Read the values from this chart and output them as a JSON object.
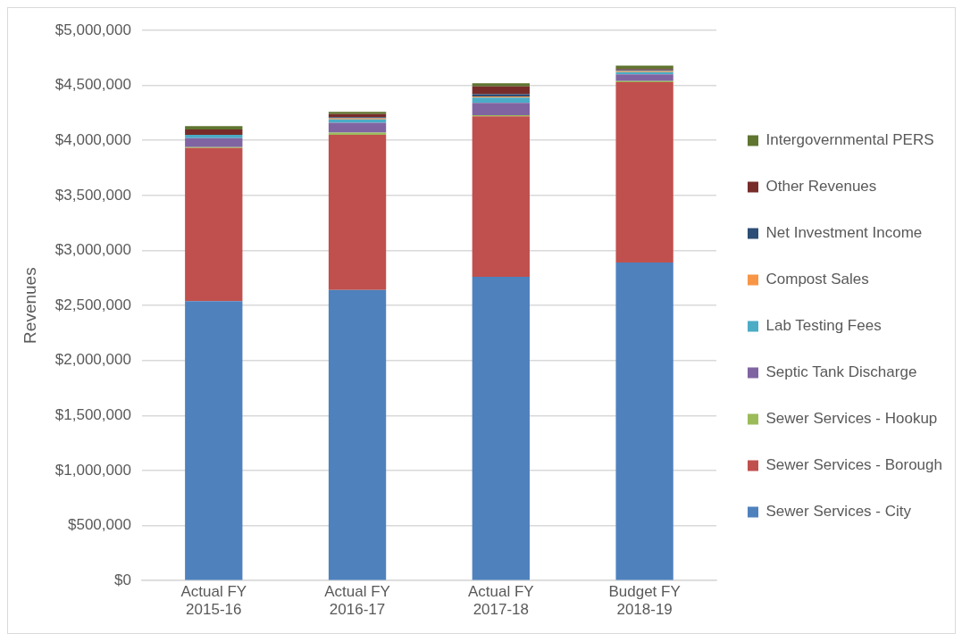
{
  "chart_data": {
    "type": "bar",
    "stacked": true,
    "ylabel": "Revenues",
    "categories": [
      "Actual FY 2015-16",
      "Actual FY 2016-17",
      "Actual FY 2017-18",
      "Budget FY 2018-19"
    ],
    "series": [
      {
        "name": "Sewer Services - City",
        "color": "#4f81bd",
        "values": [
          2540000,
          2640000,
          2760000,
          2890000
        ]
      },
      {
        "name": "Sewer Services - Borough",
        "color": "#c0504d",
        "values": [
          1390000,
          1410000,
          1460000,
          1640000
        ]
      },
      {
        "name": "Sewer Services - Hookup",
        "color": "#9bbb59",
        "values": [
          10000,
          20000,
          10000,
          10000
        ]
      },
      {
        "name": "Septic Tank Discharge",
        "color": "#8064a2",
        "values": [
          80000,
          90000,
          110000,
          60000
        ]
      },
      {
        "name": "Lab Testing Fees",
        "color": "#4bacc6",
        "values": [
          30000,
          30000,
          50000,
          20000
        ]
      },
      {
        "name": "Compost Sales",
        "color": "#f79646",
        "values": [
          0,
          10000,
          10000,
          10000
        ]
      },
      {
        "name": "Net Investment Income",
        "color": "#2c4d75",
        "values": [
          0,
          10000,
          20000,
          10000
        ]
      },
      {
        "name": "Other Revenues",
        "color": "#772c2a",
        "values": [
          50000,
          30000,
          70000,
          10000
        ]
      },
      {
        "name": "Intergovernmental PERS",
        "color": "#5f7530",
        "values": [
          30000,
          20000,
          30000,
          30000
        ]
      }
    ],
    "ylim": [
      0,
      5000000
    ],
    "yticks": [
      {
        "value": 0,
        "label": "$0"
      },
      {
        "value": 500000,
        "label": "$500,000"
      },
      {
        "value": 1000000,
        "label": "$1,000,000"
      },
      {
        "value": 1500000,
        "label": "$1,500,000"
      },
      {
        "value": 2000000,
        "label": "$2,000,000"
      },
      {
        "value": 2500000,
        "label": "$2,500,000"
      },
      {
        "value": 3000000,
        "label": "$3,000,000"
      },
      {
        "value": 3500000,
        "label": "$3,500,000"
      },
      {
        "value": 4000000,
        "label": "$4,000,000"
      },
      {
        "value": 4500000,
        "label": "$4,500,000"
      },
      {
        "value": 5000000,
        "label": "$5,000,000"
      }
    ],
    "grid": "y",
    "legend": "right"
  }
}
